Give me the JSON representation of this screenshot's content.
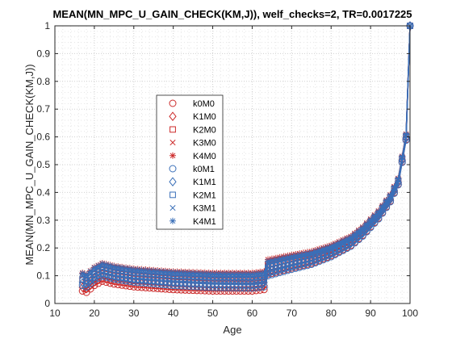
{
  "chart_data": {
    "type": "line",
    "title": "MEAN(MN_MPC_U_GAIN_CHECK(KM,J)), welf_checks=2, TR=0.0017225",
    "xlabel": "Age",
    "ylabel": "MEAN(MN_MPC_U_GAIN_CHECK(KM,J))",
    "xlim": [
      10,
      100
    ],
    "ylim": [
      0,
      1
    ],
    "xticks": [
      "10",
      "20",
      "30",
      "40",
      "50",
      "60",
      "70",
      "80",
      "90",
      "100"
    ],
    "yticks": [
      "0",
      "0.1",
      "0.2",
      "0.3",
      "0.4",
      "0.5",
      "0.6",
      "0.7",
      "0.8",
      "0.9",
      "1"
    ],
    "grid": "major and minor, dotted",
    "legend_placement": "center-left",
    "x_range": [
      17,
      100
    ],
    "colors": {
      "M0": "#CC2A2A",
      "M1": "#3A6FB8"
    },
    "knots": [
      [
        17,
        0.08
      ],
      [
        18,
        0.075
      ],
      [
        20,
        0.1
      ],
      [
        22,
        0.115
      ],
      [
        25,
        0.105
      ],
      [
        30,
        0.095
      ],
      [
        40,
        0.085
      ],
      [
        50,
        0.08
      ],
      [
        60,
        0.08
      ],
      [
        63,
        0.085
      ],
      [
        64,
        0.13
      ],
      [
        70,
        0.15
      ],
      [
        75,
        0.165
      ],
      [
        80,
        0.19
      ],
      [
        85,
        0.225
      ],
      [
        88,
        0.26
      ],
      [
        92,
        0.32
      ],
      [
        95,
        0.38
      ],
      [
        97,
        0.44
      ],
      [
        98,
        0.52
      ],
      [
        99,
        0.6
      ],
      [
        100,
        1.0
      ]
    ],
    "series": [
      {
        "name": "k0M0",
        "marker": "circle",
        "group": "M0",
        "offsets": [
          -0.035,
          -0.035,
          -0.025,
          -0.01
        ]
      },
      {
        "name": "K1M0",
        "marker": "diamond",
        "group": "M0",
        "offsets": [
          -0.022,
          -0.02,
          -0.012,
          -0.003
        ]
      },
      {
        "name": "K2M0",
        "marker": "square",
        "group": "M0",
        "offsets": [
          0.005,
          0.0,
          0.01,
          0.002
        ]
      },
      {
        "name": "K3M0",
        "marker": "x",
        "group": "M0",
        "offsets": [
          0.018,
          0.015,
          0.02,
          0.006
        ]
      },
      {
        "name": "K4M0",
        "marker": "star",
        "group": "M0",
        "offsets": [
          0.03,
          0.03,
          0.028,
          0.01
        ]
      },
      {
        "name": "k0M1",
        "marker": "circle",
        "group": "M1",
        "offsets": [
          -0.015,
          -0.025,
          -0.03,
          -0.012
        ]
      },
      {
        "name": "K1M1",
        "marker": "diamond",
        "group": "M1",
        "offsets": [
          -0.005,
          -0.01,
          -0.015,
          -0.005
        ]
      },
      {
        "name": "K2M1",
        "marker": "square",
        "group": "M1",
        "offsets": [
          0.008,
          0.005,
          0.0,
          0.0
        ]
      },
      {
        "name": "K3M1",
        "marker": "x",
        "group": "M1",
        "offsets": [
          0.018,
          0.015,
          0.012,
          0.004
        ]
      },
      {
        "name": "K4M1",
        "marker": "star",
        "group": "M1",
        "offsets": [
          0.028,
          0.025,
          0.022,
          0.008
        ]
      }
    ]
  }
}
